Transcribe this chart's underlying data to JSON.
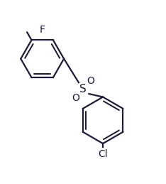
{
  "bg_color": "#ffffff",
  "line_color": "#1c1c3a",
  "line_width": 1.6,
  "font_size_label": 10,
  "r1cx": 0.255,
  "r1cy": 0.7,
  "r1r": 0.13,
  "r2cx": 0.62,
  "r2cy": 0.33,
  "r2r": 0.14,
  "sx": 0.5,
  "sy": 0.515,
  "F_label": "F",
  "S_label": "S",
  "O_label": "O",
  "Cl_label": "Cl"
}
